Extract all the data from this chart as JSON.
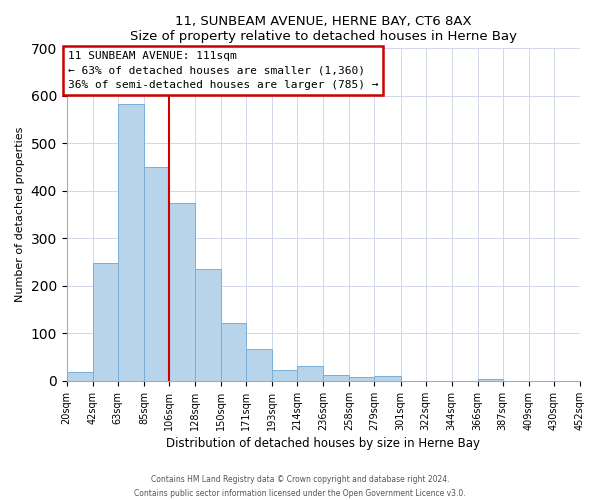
{
  "title": "11, SUNBEAM AVENUE, HERNE BAY, CT6 8AX",
  "subtitle": "Size of property relative to detached houses in Herne Bay",
  "xlabel": "Distribution of detached houses by size in Herne Bay",
  "ylabel": "Number of detached properties",
  "bar_edges": [
    20,
    42,
    63,
    85,
    106,
    128,
    150,
    171,
    193,
    214,
    236,
    258,
    279,
    301,
    322,
    344,
    366,
    387,
    409,
    430,
    452
  ],
  "bar_heights": [
    18,
    248,
    583,
    450,
    375,
    235,
    122,
    68,
    23,
    31,
    13,
    8,
    10,
    0,
    0,
    0,
    4,
    0,
    0,
    0,
    2
  ],
  "bar_color": "#b8d4ea",
  "bar_edge_color": "#7aafd4",
  "vline_x": 106,
  "vline_color": "#cc0000",
  "ylim": [
    0,
    700
  ],
  "yticks": [
    0,
    100,
    200,
    300,
    400,
    500,
    600,
    700
  ],
  "annotation_title": "11 SUNBEAM AVENUE: 111sqm",
  "annotation_line1": "← 63% of detached houses are smaller (1,360)",
  "annotation_line2": "36% of semi-detached houses are larger (785) →",
  "annotation_box_color": "#cc0000",
  "footer_line1": "Contains HM Land Registry data © Crown copyright and database right 2024.",
  "footer_line2": "Contains public sector information licensed under the Open Government Licence v3.0.",
  "tick_labels": [
    "20sqm",
    "42sqm",
    "63sqm",
    "85sqm",
    "106sqm",
    "128sqm",
    "150sqm",
    "171sqm",
    "193sqm",
    "214sqm",
    "236sqm",
    "258sqm",
    "279sqm",
    "301sqm",
    "322sqm",
    "344sqm",
    "366sqm",
    "387sqm",
    "409sqm",
    "430sqm",
    "452sqm"
  ]
}
